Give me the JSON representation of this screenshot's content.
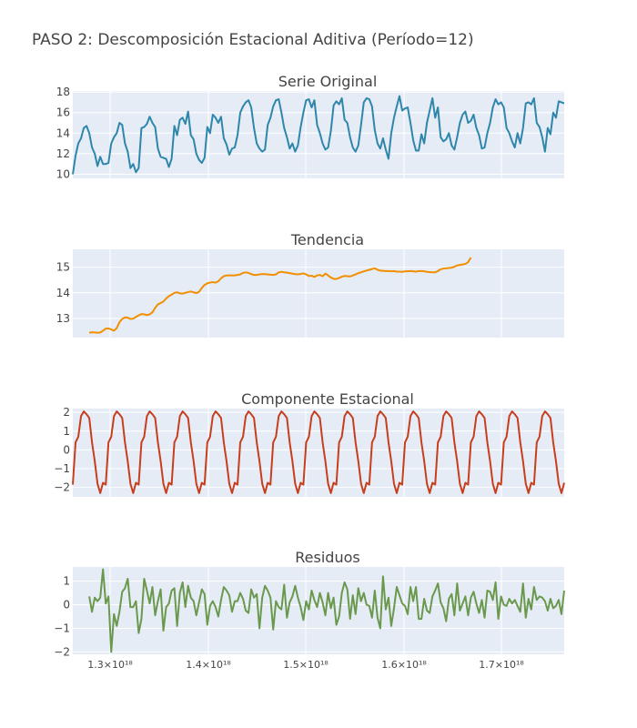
{
  "title": "PASO 2: Descomposición Estacional Aditiva (Período=12)",
  "colors": {
    "background": "#e5ecf6",
    "grid": "#ffffff",
    "text": "#444444"
  },
  "chart_data": [
    {
      "type": "line",
      "title": "Serie Original",
      "color": "#2e86ab",
      "ylim": [
        9.6,
        18.1
      ],
      "yticks": [
        10,
        12,
        14,
        16,
        18
      ],
      "values": [
        10.0,
        11.8,
        13.0,
        13.5,
        14.5,
        14.7,
        14.0,
        12.6,
        12.0,
        10.8,
        11.7,
        11.0,
        11.0,
        11.1,
        13.0,
        13.6,
        14.0,
        15.0,
        14.8,
        13.0,
        12.2,
        10.6,
        11.0,
        10.2,
        10.6,
        14.5,
        14.6,
        14.9,
        15.6,
        15.0,
        14.6,
        12.5,
        11.7,
        11.6,
        11.5,
        10.7,
        11.5,
        14.7,
        13.8,
        15.3,
        15.5,
        14.9,
        16.1,
        13.8,
        13.4,
        12.0,
        11.4,
        11.1,
        11.6,
        14.6,
        14.0,
        15.8,
        15.5,
        15.0,
        15.6,
        13.5,
        12.9,
        11.9,
        12.5,
        12.6,
        13.8,
        16.0,
        16.6,
        17.0,
        17.2,
        16.5,
        14.5,
        13.0,
        12.5,
        12.2,
        12.4,
        14.8,
        15.5,
        16.6,
        17.2,
        17.3,
        16.0,
        14.5,
        13.6,
        12.5,
        13.0,
        12.2,
        12.8,
        14.6,
        16.0,
        17.2,
        17.3,
        16.5,
        17.2,
        14.8,
        14.0,
        13.0,
        12.4,
        12.6,
        14.2,
        16.7,
        17.1,
        16.8,
        17.4,
        15.3,
        15.0,
        13.6,
        12.6,
        12.2,
        12.8,
        14.8,
        17.0,
        17.4,
        17.3,
        16.6,
        14.3,
        13.0,
        12.5,
        13.5,
        12.4,
        11.5,
        14.0,
        15.5,
        16.6,
        17.6,
        16.2,
        16.4,
        16.5,
        15.0,
        13.3,
        12.3,
        12.3,
        13.9,
        13.0,
        15.0,
        16.2,
        17.4,
        15.5,
        16.5,
        13.6,
        13.2,
        13.4,
        14.0,
        12.8,
        12.4,
        13.6,
        15.0,
        15.8,
        16.1,
        15.0,
        15.2,
        15.8,
        14.5,
        13.8,
        12.5,
        12.6,
        14.0,
        15.0,
        16.5,
        17.3,
        16.8,
        17.0,
        16.5,
        14.5,
        14.0,
        13.2,
        12.6,
        14.0,
        13.0,
        14.5,
        16.9,
        17.0,
        16.8,
        17.4,
        15.0,
        14.6,
        13.6,
        12.2,
        14.5,
        13.9,
        16.0,
        15.5,
        17.1,
        17.0,
        16.9,
        17.3,
        14.8,
        15.8,
        15.0,
        13.4
      ]
    },
    {
      "type": "line",
      "title": "Tendencia",
      "color": "#f18f01",
      "ylim": [
        12.25,
        15.7
      ],
      "yticks": [
        13,
        14,
        15
      ],
      "x_offset": 6,
      "values": [
        12.44,
        12.46,
        12.45,
        12.44,
        12.45,
        12.52,
        12.6,
        12.61,
        12.57,
        12.52,
        12.62,
        12.85,
        12.98,
        13.04,
        13.03,
        12.98,
        12.99,
        13.06,
        13.12,
        13.17,
        13.16,
        13.13,
        13.16,
        13.24,
        13.41,
        13.55,
        13.6,
        13.66,
        13.78,
        13.87,
        13.93,
        14.0,
        14.02,
        13.98,
        13.97,
        14.0,
        14.03,
        14.05,
        14.02,
        13.99,
        14.04,
        14.19,
        14.31,
        14.37,
        14.4,
        14.42,
        14.4,
        14.45,
        14.57,
        14.65,
        14.68,
        14.68,
        14.68,
        14.68,
        14.7,
        14.72,
        14.78,
        14.8,
        14.78,
        14.73,
        14.7,
        14.7,
        14.72,
        14.73,
        14.73,
        14.72,
        14.71,
        14.7,
        14.72,
        14.8,
        14.82,
        14.8,
        14.79,
        14.77,
        14.75,
        14.73,
        14.72,
        14.74,
        14.76,
        14.72,
        14.66,
        14.67,
        14.62,
        14.68,
        14.7,
        14.65,
        14.75,
        14.68,
        14.6,
        14.55,
        14.54,
        14.58,
        14.63,
        14.66,
        14.65,
        14.64,
        14.68,
        14.72,
        14.77,
        14.8,
        14.84,
        14.87,
        14.9,
        14.93,
        14.96,
        14.9,
        14.87,
        14.86,
        14.85,
        14.85,
        14.84,
        14.85,
        14.83,
        14.83,
        14.82,
        14.84,
        14.84,
        14.85,
        14.84,
        14.83,
        14.85,
        14.85,
        14.84,
        14.82,
        14.81,
        14.8,
        14.8,
        14.85,
        14.92,
        14.95,
        14.96,
        14.97,
        14.98,
        15.02,
        15.07,
        15.09,
        15.11,
        15.13,
        15.2,
        15.38
      ]
    },
    {
      "type": "line",
      "title": "Componente Estacional",
      "color": "#c73e1d",
      "ylim": [
        -2.5,
        2.2
      ],
      "yticks": [
        -2,
        -1,
        0,
        1,
        2
      ],
      "pattern": [
        0.4,
        0.7,
        1.8,
        2.05,
        1.9,
        1.7,
        0.4,
        -0.6,
        -1.8,
        -2.3,
        -1.75,
        -1.85
      ],
      "cycles": 16,
      "phase": 11
    },
    {
      "type": "line",
      "title": "Residuos",
      "color": "#6a994e",
      "ylim": [
        -2.1,
        1.6
      ],
      "yticks": [
        -2,
        -1,
        0,
        1
      ],
      "xtick_labels": [
        "1.3×10¹⁸",
        "1.4×10¹⁸",
        "1.5×10¹⁸",
        "1.6×10¹⁸",
        "1.7×10¹⁸"
      ],
      "x_offset": 6,
      "values": [
        0.35,
        -0.3,
        0.3,
        0.15,
        0.3,
        1.5,
        0.05,
        0.35,
        -2.0,
        -0.4,
        -0.9,
        -0.3,
        0.55,
        0.7,
        1.1,
        -0.1,
        -0.1,
        0.15,
        -1.2,
        -0.6,
        1.1,
        0.6,
        0.05,
        0.75,
        -0.45,
        0.15,
        0.65,
        -1.1,
        -0.1,
        0.05,
        0.6,
        0.7,
        -0.9,
        0.5,
        0.95,
        -0.1,
        0.8,
        0.3,
        0.15,
        -0.45,
        0.1,
        0.65,
        0.45,
        -0.85,
        -0.05,
        0.15,
        -0.1,
        -0.5,
        0.2,
        0.75,
        0.6,
        0.4,
        -0.3,
        0.15,
        0.15,
        0.5,
        0.25,
        -0.25,
        -0.35,
        0.65,
        0.3,
        0.45,
        -1.0,
        0.3,
        0.8,
        0.6,
        0.3,
        -1.05,
        0.15,
        -0.1,
        -0.2,
        0.85,
        -0.55,
        0.1,
        0.35,
        0.8,
        0.3,
        -0.1,
        -0.65,
        0.15,
        -0.2,
        0.6,
        0.2,
        -0.1,
        0.5,
        0.1,
        -0.45,
        0.5,
        -0.15,
        0.3,
        -0.85,
        -0.5,
        0.5,
        0.95,
        0.65,
        -0.6,
        0.4,
        -0.4,
        0.7,
        0.15,
        0.5,
        0.0,
        -0.05,
        -0.55,
        0.6,
        -0.55,
        -1.0,
        1.2,
        -0.2,
        0.3,
        -0.9,
        -0.15,
        0.75,
        0.4,
        0.05,
        -0.05,
        -0.4,
        0.75,
        0.15,
        0.75,
        -0.6,
        -0.6,
        0.25,
        -0.25,
        -0.35,
        0.35,
        0.6,
        0.9,
        0.1,
        -0.15,
        -0.7,
        0.25,
        0.45,
        -0.45,
        0.9,
        -0.25,
        0.05,
        0.35,
        -0.45,
        0.3,
        0.55,
        0.05,
        -0.35,
        0.2,
        -0.55,
        0.6,
        0.55,
        0.2,
        0.95,
        -0.6,
        0.35,
        0.0,
        -0.05,
        0.25,
        0.05,
        0.2,
        -0.05,
        -0.3,
        0.9,
        -0.55,
        0.25,
        -0.2,
        0.75,
        0.2,
        0.35,
        0.3,
        0.15,
        -0.25,
        0.25,
        -0.15,
        -0.05,
        0.2,
        -0.4,
        0.6,
        -0.4,
        -0.5
      ]
    }
  ]
}
